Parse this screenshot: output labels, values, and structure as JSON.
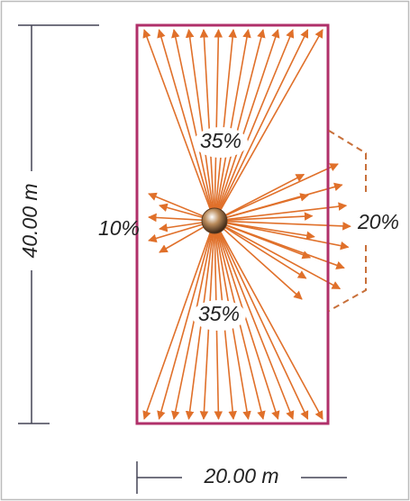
{
  "regions": [
    {
      "label": "35%"
    },
    {
      "label": "35%"
    },
    {
      "label": "10%"
    },
    {
      "label": "20%"
    }
  ],
  "dimensions": {
    "height": "40.00 m",
    "width": "20.00 m"
  }
}
